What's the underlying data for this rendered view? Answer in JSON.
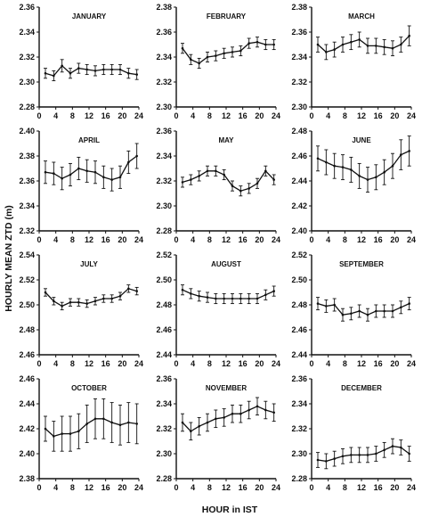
{
  "figure": {
    "ylabel": "HOURLY MEAN ZTD (m)",
    "xlabel": "HOUR in IST"
  },
  "chart_data": [
    {
      "type": "line",
      "title": "JANUARY",
      "ylim": [
        2.28,
        2.36
      ],
      "yticks": [
        "2.36",
        "2.34",
        "2.32",
        "2.30",
        "2.28"
      ],
      "x_ticks": [
        0,
        4,
        8,
        12,
        16,
        20,
        24
      ],
      "x": [
        1.5,
        3.5,
        5.5,
        7.5,
        9.5,
        11.5,
        13.5,
        15.5,
        17.5,
        19.5,
        21.5,
        23.5
      ],
      "y": [
        2.307,
        2.305,
        2.313,
        2.307,
        2.311,
        2.31,
        2.309,
        2.31,
        2.31,
        2.31,
        2.307,
        2.306
      ],
      "err": [
        0.004,
        0.004,
        0.005,
        0.004,
        0.004,
        0.004,
        0.004,
        0.004,
        0.004,
        0.004,
        0.004,
        0.004
      ]
    },
    {
      "type": "line",
      "title": "FEBRUARY",
      "ylim": [
        2.3,
        2.38
      ],
      "yticks": [
        "2.38",
        "2.36",
        "2.34",
        "2.32",
        "2.30"
      ],
      "x_ticks": [
        0,
        4,
        8,
        12,
        16,
        20,
        24
      ],
      "x": [
        1.5,
        3.5,
        5.5,
        7.5,
        9.5,
        11.5,
        13.5,
        15.5,
        17.5,
        19.5,
        21.5,
        23.5
      ],
      "y": [
        2.347,
        2.338,
        2.335,
        2.34,
        2.341,
        2.343,
        2.344,
        2.345,
        2.351,
        2.352,
        2.35,
        2.35
      ],
      "err": [
        0.004,
        0.004,
        0.004,
        0.004,
        0.004,
        0.004,
        0.004,
        0.004,
        0.004,
        0.004,
        0.004,
        0.004
      ]
    },
    {
      "type": "line",
      "title": "MARCH",
      "ylim": [
        2.3,
        2.38
      ],
      "yticks": [
        "2.38",
        "2.36",
        "2.34",
        "2.32",
        "2.30"
      ],
      "x_ticks": [
        0,
        4,
        8,
        12,
        16,
        20,
        24
      ],
      "x": [
        1.5,
        3.5,
        5.5,
        7.5,
        9.5,
        11.5,
        13.5,
        15.5,
        17.5,
        19.5,
        21.5,
        23.5
      ],
      "y": [
        2.35,
        2.344,
        2.346,
        2.35,
        2.352,
        2.354,
        2.349,
        2.349,
        2.348,
        2.347,
        2.35,
        2.357
      ],
      "err": [
        0.006,
        0.006,
        0.006,
        0.006,
        0.006,
        0.006,
        0.006,
        0.006,
        0.006,
        0.006,
        0.006,
        0.008
      ]
    },
    {
      "type": "line",
      "title": "APRIL",
      "ylim": [
        2.32,
        2.4
      ],
      "yticks": [
        "2.40",
        "2.38",
        "2.36",
        "2.34",
        "2.32"
      ],
      "x_ticks": [
        0,
        4,
        8,
        12,
        16,
        20,
        24
      ],
      "x": [
        1.5,
        3.5,
        5.5,
        7.5,
        9.5,
        11.5,
        13.5,
        15.5,
        17.5,
        19.5,
        21.5,
        23.5
      ],
      "y": [
        2.367,
        2.366,
        2.362,
        2.365,
        2.37,
        2.368,
        2.367,
        2.363,
        2.361,
        2.363,
        2.375,
        2.38
      ],
      "err": [
        0.009,
        0.009,
        0.009,
        0.009,
        0.009,
        0.009,
        0.009,
        0.009,
        0.009,
        0.009,
        0.009,
        0.01
      ]
    },
    {
      "type": "line",
      "title": "MAY",
      "ylim": [
        2.28,
        2.36
      ],
      "yticks": [
        "2.36",
        "2.34",
        "2.32",
        "2.30",
        "2.28"
      ],
      "x_ticks": [
        0,
        4,
        8,
        12,
        16,
        20,
        24
      ],
      "x": [
        1.5,
        3.5,
        5.5,
        7.5,
        9.5,
        11.5,
        13.5,
        15.5,
        17.5,
        19.5,
        21.5,
        23.5
      ],
      "y": [
        2.319,
        2.321,
        2.324,
        2.328,
        2.328,
        2.325,
        2.316,
        2.312,
        2.314,
        2.318,
        2.328,
        2.321
      ],
      "err": [
        0.004,
        0.004,
        0.004,
        0.004,
        0.004,
        0.004,
        0.004,
        0.004,
        0.004,
        0.004,
        0.004,
        0.004
      ]
    },
    {
      "type": "line",
      "title": "JUNE",
      "ylim": [
        2.4,
        2.48
      ],
      "yticks": [
        "2.48",
        "2.46",
        "2.44",
        "2.42",
        "2.40"
      ],
      "x_ticks": [
        0,
        4,
        8,
        12,
        16,
        20,
        24
      ],
      "x": [
        1.5,
        3.5,
        5.5,
        7.5,
        9.5,
        11.5,
        13.5,
        15.5,
        17.5,
        19.5,
        21.5,
        23.5
      ],
      "y": [
        2.458,
        2.455,
        2.452,
        2.451,
        2.449,
        2.444,
        2.441,
        2.443,
        2.447,
        2.452,
        2.461,
        2.464
      ],
      "err": [
        0.01,
        0.01,
        0.01,
        0.01,
        0.01,
        0.01,
        0.01,
        0.01,
        0.01,
        0.01,
        0.012,
        0.012
      ]
    },
    {
      "type": "line",
      "title": "JULY",
      "ylim": [
        2.46,
        2.54
      ],
      "yticks": [
        "2.54",
        "2.52",
        "2.50",
        "2.48",
        "2.46"
      ],
      "x_ticks": [
        0,
        4,
        8,
        12,
        16,
        20,
        24
      ],
      "x": [
        1.5,
        3.5,
        5.5,
        7.5,
        9.5,
        11.5,
        13.5,
        15.5,
        17.5,
        19.5,
        21.5,
        23.5
      ],
      "y": [
        2.51,
        2.503,
        2.499,
        2.502,
        2.502,
        2.501,
        2.503,
        2.505,
        2.505,
        2.507,
        2.513,
        2.511
      ],
      "err": [
        0.003,
        0.003,
        0.003,
        0.003,
        0.003,
        0.003,
        0.003,
        0.003,
        0.003,
        0.003,
        0.003,
        0.003
      ]
    },
    {
      "type": "line",
      "title": "AUGUST",
      "ylim": [
        2.44,
        2.52
      ],
      "yticks": [
        "2.52",
        "2.50",
        "2.48",
        "2.46",
        "2.44"
      ],
      "x_ticks": [
        0,
        4,
        8,
        12,
        16,
        20,
        24
      ],
      "x": [
        1.5,
        3.5,
        5.5,
        7.5,
        9.5,
        11.5,
        13.5,
        15.5,
        17.5,
        19.5,
        21.5,
        23.5
      ],
      "y": [
        2.492,
        2.489,
        2.487,
        2.486,
        2.485,
        2.485,
        2.485,
        2.485,
        2.485,
        2.485,
        2.488,
        2.491
      ],
      "err": [
        0.004,
        0.004,
        0.004,
        0.004,
        0.004,
        0.004,
        0.004,
        0.004,
        0.004,
        0.004,
        0.004,
        0.004
      ]
    },
    {
      "type": "line",
      "title": "SEPTEMBER",
      "ylim": [
        2.44,
        2.52
      ],
      "yticks": [
        "2.52",
        "2.50",
        "2.48",
        "2.46",
        "2.44"
      ],
      "x_ticks": [
        0,
        4,
        8,
        12,
        16,
        20,
        24
      ],
      "x": [
        1.5,
        3.5,
        5.5,
        7.5,
        9.5,
        11.5,
        13.5,
        15.5,
        17.5,
        19.5,
        21.5,
        23.5
      ],
      "y": [
        2.481,
        2.479,
        2.48,
        2.472,
        2.473,
        2.475,
        2.472,
        2.475,
        2.475,
        2.475,
        2.478,
        2.481
      ],
      "err": [
        0.005,
        0.005,
        0.005,
        0.005,
        0.005,
        0.005,
        0.005,
        0.005,
        0.005,
        0.005,
        0.005,
        0.005
      ]
    },
    {
      "type": "line",
      "title": "OCTOBER",
      "ylim": [
        2.38,
        2.46
      ],
      "yticks": [
        "2.46",
        "2.44",
        "2.42",
        "2.40",
        "2.38"
      ],
      "x_ticks": [
        0,
        4,
        8,
        12,
        16,
        20,
        24
      ],
      "x": [
        1.5,
        3.5,
        5.5,
        7.5,
        9.5,
        11.5,
        13.5,
        15.5,
        17.5,
        19.5,
        21.5,
        23.5
      ],
      "y": [
        2.42,
        2.414,
        2.416,
        2.416,
        2.418,
        2.424,
        2.428,
        2.428,
        2.425,
        2.423,
        2.425,
        2.424
      ],
      "err": [
        0.01,
        0.012,
        0.014,
        0.014,
        0.014,
        0.015,
        0.016,
        0.016,
        0.016,
        0.016,
        0.016,
        0.016
      ]
    },
    {
      "type": "line",
      "title": "NOVEMBER",
      "ylim": [
        2.28,
        2.36
      ],
      "yticks": [
        "2.36",
        "2.34",
        "2.32",
        "2.30",
        "2.28"
      ],
      "x_ticks": [
        0,
        4,
        8,
        12,
        16,
        20,
        24
      ],
      "x": [
        1.5,
        3.5,
        5.5,
        7.5,
        9.5,
        11.5,
        13.5,
        15.5,
        17.5,
        19.5,
        21.5,
        23.5
      ],
      "y": [
        2.325,
        2.318,
        2.322,
        2.325,
        2.328,
        2.329,
        2.332,
        2.332,
        2.335,
        2.338,
        2.335,
        2.333
      ],
      "err": [
        0.007,
        0.007,
        0.007,
        0.007,
        0.007,
        0.007,
        0.007,
        0.007,
        0.007,
        0.007,
        0.007,
        0.007
      ]
    },
    {
      "type": "line",
      "title": "DECEMBER",
      "ylim": [
        2.28,
        2.36
      ],
      "yticks": [
        "2.36",
        "2.34",
        "2.32",
        "2.30",
        "2.28"
      ],
      "x_ticks": [
        0,
        4,
        8,
        12,
        16,
        20,
        24
      ],
      "x": [
        1.5,
        3.5,
        5.5,
        7.5,
        9.5,
        11.5,
        13.5,
        15.5,
        17.5,
        19.5,
        21.5,
        23.5
      ],
      "y": [
        2.295,
        2.294,
        2.296,
        2.298,
        2.299,
        2.299,
        2.299,
        2.3,
        2.303,
        2.306,
        2.305,
        2.3
      ],
      "err": [
        0.006,
        0.006,
        0.006,
        0.006,
        0.006,
        0.006,
        0.006,
        0.006,
        0.006,
        0.006,
        0.006,
        0.006
      ]
    }
  ]
}
